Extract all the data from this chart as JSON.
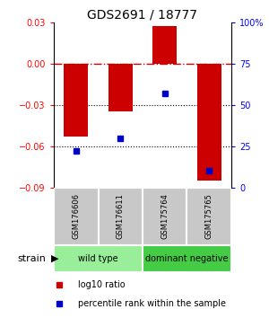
{
  "title": "GDS2691 / 18777",
  "samples": [
    "GSM176606",
    "GSM176611",
    "GSM175764",
    "GSM175765"
  ],
  "log10_ratios": [
    -0.053,
    -0.035,
    0.027,
    -0.085
  ],
  "percentile_ranks": [
    22,
    30,
    57,
    10
  ],
  "ylim_left": [
    -0.09,
    0.03
  ],
  "ylim_right": [
    0,
    100
  ],
  "bar_color": "#cc0000",
  "dot_color": "#0000cc",
  "hline_zero_color": "#cc0000",
  "hlines_dotted": [
    -0.03,
    -0.06
  ],
  "strains": [
    {
      "label": "wild type",
      "samples": [
        0,
        1
      ],
      "color": "#99ee99"
    },
    {
      "label": "dominant negative",
      "samples": [
        2,
        3
      ],
      "color": "#44cc44"
    }
  ],
  "strain_label": "strain",
  "legend_items": [
    {
      "color": "#cc0000",
      "label": "log10 ratio"
    },
    {
      "color": "#0000cc",
      "label": "percentile rank within the sample"
    }
  ],
  "yticks_left": [
    -0.09,
    -0.06,
    -0.03,
    0,
    0.03
  ],
  "yticks_right": [
    0,
    25,
    50,
    75,
    100
  ],
  "ytick_labels_right": [
    "0",
    "25",
    "50",
    "75",
    "100%"
  ],
  "sample_box_color": "#c8c8c8"
}
